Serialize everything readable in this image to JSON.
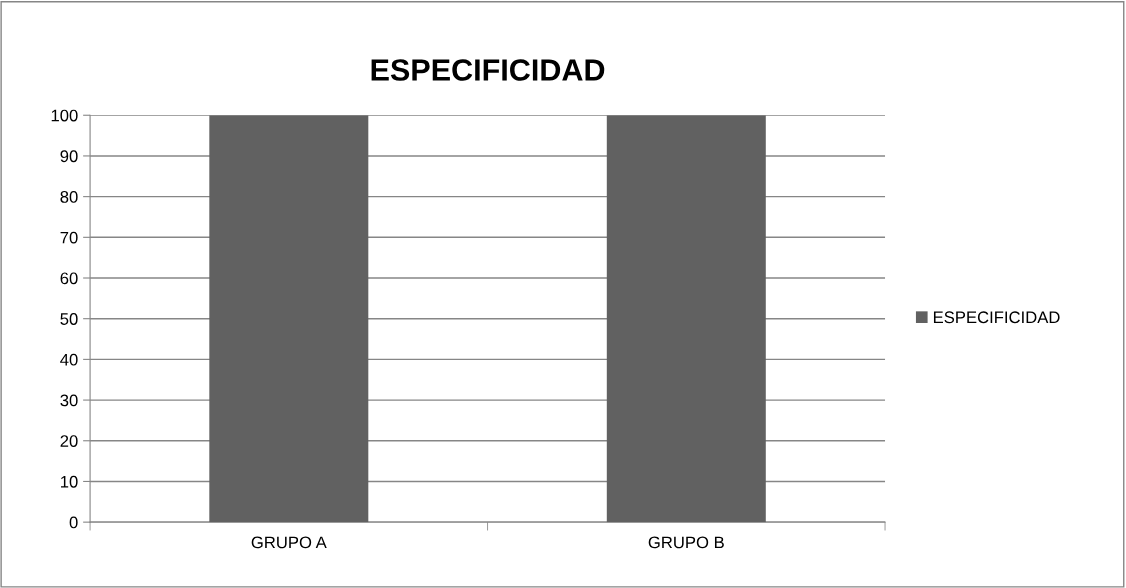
{
  "chart_data": {
    "type": "bar",
    "title": "ESPECIFICIDAD",
    "categories": [
      "GRUPO A",
      "GRUPO B"
    ],
    "series": [
      {
        "name": "ESPECIFICIDAD",
        "color": "#616161",
        "values": [
          100,
          100
        ]
      }
    ],
    "ylim": [
      0,
      100
    ],
    "yticks": [
      0,
      10,
      20,
      30,
      40,
      50,
      60,
      70,
      80,
      90,
      100
    ],
    "grid": "y",
    "legend": "right"
  }
}
